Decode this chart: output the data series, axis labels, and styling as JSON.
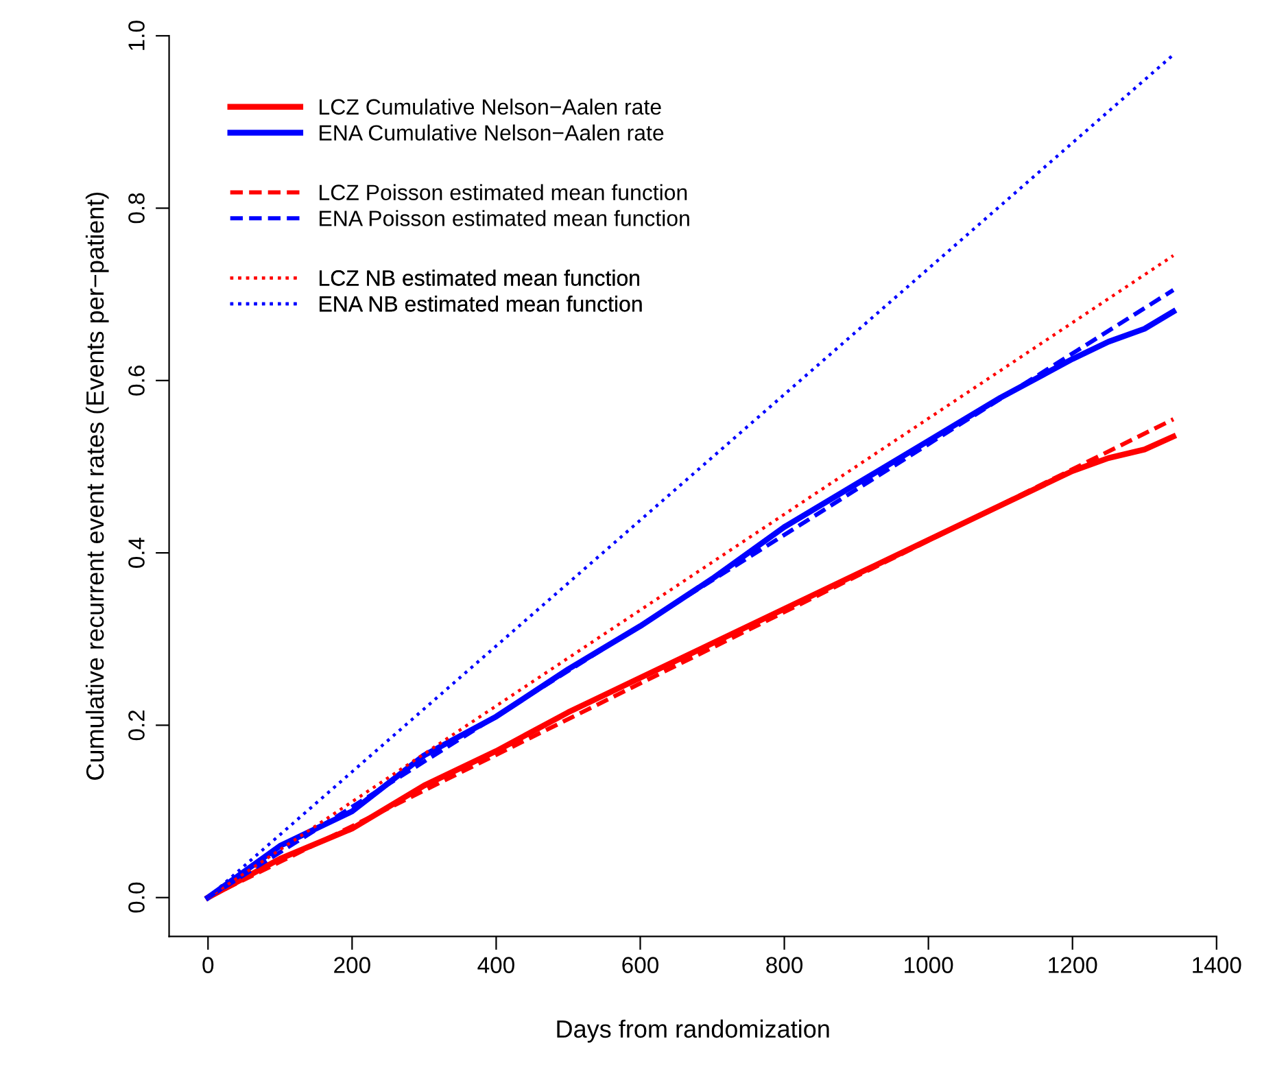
{
  "chart_data": {
    "type": "line",
    "xlabel": "Days from randomization",
    "ylabel": "Cumulative recurrent event rates (Events per−patient)",
    "xlim": [
      -54,
      1400
    ],
    "ylim": [
      -0.045,
      1.0
    ],
    "xticks": [
      0,
      200,
      400,
      600,
      800,
      1000,
      1200,
      1400
    ],
    "yticks": [
      {
        "value": 0,
        "label": "0.0"
      },
      {
        "value": 0.2,
        "label": "0.2"
      },
      {
        "value": 0.4,
        "label": "0.4"
      },
      {
        "value": 0.6,
        "label": "0.6"
      },
      {
        "value": 0.8,
        "label": "0.8"
      },
      {
        "value": 1.0,
        "label": "1.0"
      }
    ],
    "grid": false,
    "legend": "top left",
    "series": [
      {
        "name": "LCZ Cumulative Nelson−Aalen rate",
        "line_style": "solid",
        "color": "#ff0000",
        "x": [
          0,
          100,
          200,
          300,
          400,
          500,
          600,
          700,
          800,
          900,
          1000,
          1100,
          1200,
          1250,
          1300,
          1340
        ],
        "values": [
          0,
          0.045,
          0.08,
          0.13,
          0.17,
          0.215,
          0.255,
          0.295,
          0.335,
          0.375,
          0.415,
          0.455,
          0.495,
          0.51,
          0.52,
          0.535
        ]
      },
      {
        "name": "ENA Cumulative Nelson−Aalen rate",
        "line_style": "solid",
        "color": "#0000ff",
        "x": [
          0,
          100,
          200,
          300,
          400,
          500,
          600,
          700,
          800,
          900,
          1000,
          1100,
          1200,
          1250,
          1300,
          1340
        ],
        "values": [
          0,
          0.06,
          0.1,
          0.165,
          0.21,
          0.265,
          0.315,
          0.37,
          0.43,
          0.48,
          0.53,
          0.58,
          0.625,
          0.645,
          0.66,
          0.68
        ]
      },
      {
        "name": "LCZ Poisson estimated mean function",
        "line_style": "dashed",
        "color": "#ff0000",
        "x": [
          0,
          1340
        ],
        "values": [
          0,
          0.555
        ]
      },
      {
        "name": "ENA Poisson estimated mean function",
        "line_style": "dashed",
        "color": "#0000ff",
        "x": [
          0,
          1340
        ],
        "values": [
          0,
          0.705
        ]
      },
      {
        "name": "LCZ NB estimated mean function",
        "line_style": "dotted",
        "color": "#ff0000",
        "x": [
          0,
          1340
        ],
        "values": [
          0,
          0.745
        ]
      },
      {
        "name": "ENA NB estimated mean function",
        "line_style": "dotted",
        "color": "#0000ff",
        "x": [
          0,
          1340
        ],
        "values": [
          0,
          0.978
        ]
      }
    ]
  }
}
